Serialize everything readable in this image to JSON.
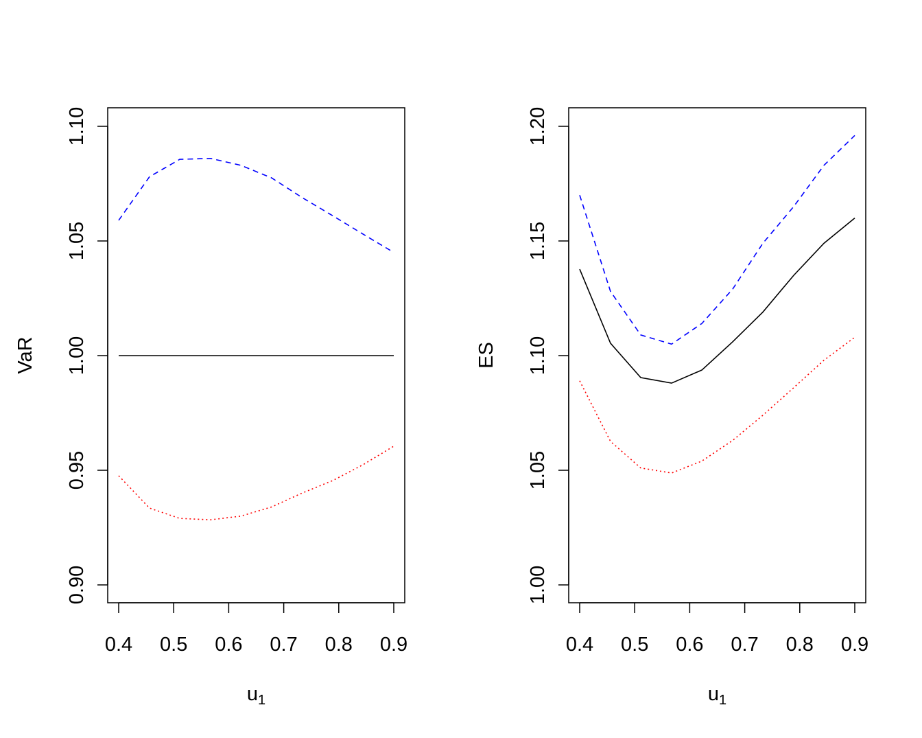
{
  "chart_data": [
    {
      "type": "line",
      "title": "",
      "xlabel": "u",
      "xlabel_subscript": "1",
      "ylabel": "VaR",
      "xlim": [
        0.4,
        0.9
      ],
      "ylim": [
        0.9,
        1.1
      ],
      "xticks": [
        "0.4",
        "0.5",
        "0.6",
        "0.7",
        "0.8",
        "0.9"
      ],
      "yticks": [
        "0.90",
        "0.95",
        "1.00",
        "1.05",
        "1.10"
      ],
      "grid": false,
      "x": [
        0.4,
        0.456,
        0.511,
        0.567,
        0.622,
        0.678,
        0.733,
        0.789,
        0.844,
        0.9
      ],
      "series": [
        {
          "style": "solid",
          "color": "#000000",
          "values": [
            1.0,
            1.0,
            1.0,
            1.0,
            1.0,
            1.0,
            1.0,
            1.0,
            1.0,
            1.0
          ]
        },
        {
          "style": "dashed",
          "color": "#0000FF",
          "values": [
            1.059,
            1.078,
            1.0856,
            1.086,
            1.083,
            1.0775,
            1.069,
            1.061,
            1.053,
            1.045
          ]
        },
        {
          "style": "dotted",
          "color": "#FF0000",
          "values": [
            0.9476,
            0.9335,
            0.929,
            0.9284,
            0.93,
            0.934,
            0.94,
            0.9455,
            0.9524,
            0.9605
          ]
        }
      ]
    },
    {
      "type": "line",
      "title": "",
      "xlabel": "u",
      "xlabel_subscript": "1",
      "ylabel": "ES",
      "xlim": [
        0.4,
        0.9
      ],
      "ylim": [
        1.0,
        1.2
      ],
      "xticks": [
        "0.4",
        "0.5",
        "0.6",
        "0.7",
        "0.8",
        "0.9"
      ],
      "yticks": [
        "1.00",
        "1.05",
        "1.10",
        "1.15",
        "1.20"
      ],
      "grid": false,
      "x": [
        0.4,
        0.456,
        0.511,
        0.567,
        0.622,
        0.678,
        0.733,
        0.789,
        0.844,
        0.9
      ],
      "series": [
        {
          "style": "solid",
          "color": "#000000",
          "values": [
            1.1377,
            1.1054,
            1.0904,
            1.088,
            1.0937,
            1.106,
            1.119,
            1.135,
            1.149,
            1.16
          ]
        },
        {
          "style": "dashed",
          "color": "#0000FF",
          "values": [
            1.17,
            1.128,
            1.109,
            1.105,
            1.114,
            1.129,
            1.149,
            1.165,
            1.183,
            1.196
          ]
        },
        {
          "style": "dotted",
          "color": "#FF0000",
          "values": [
            1.089,
            1.0626,
            1.051,
            1.0488,
            1.054,
            1.063,
            1.074,
            1.086,
            1.098,
            1.108
          ]
        }
      ]
    }
  ]
}
